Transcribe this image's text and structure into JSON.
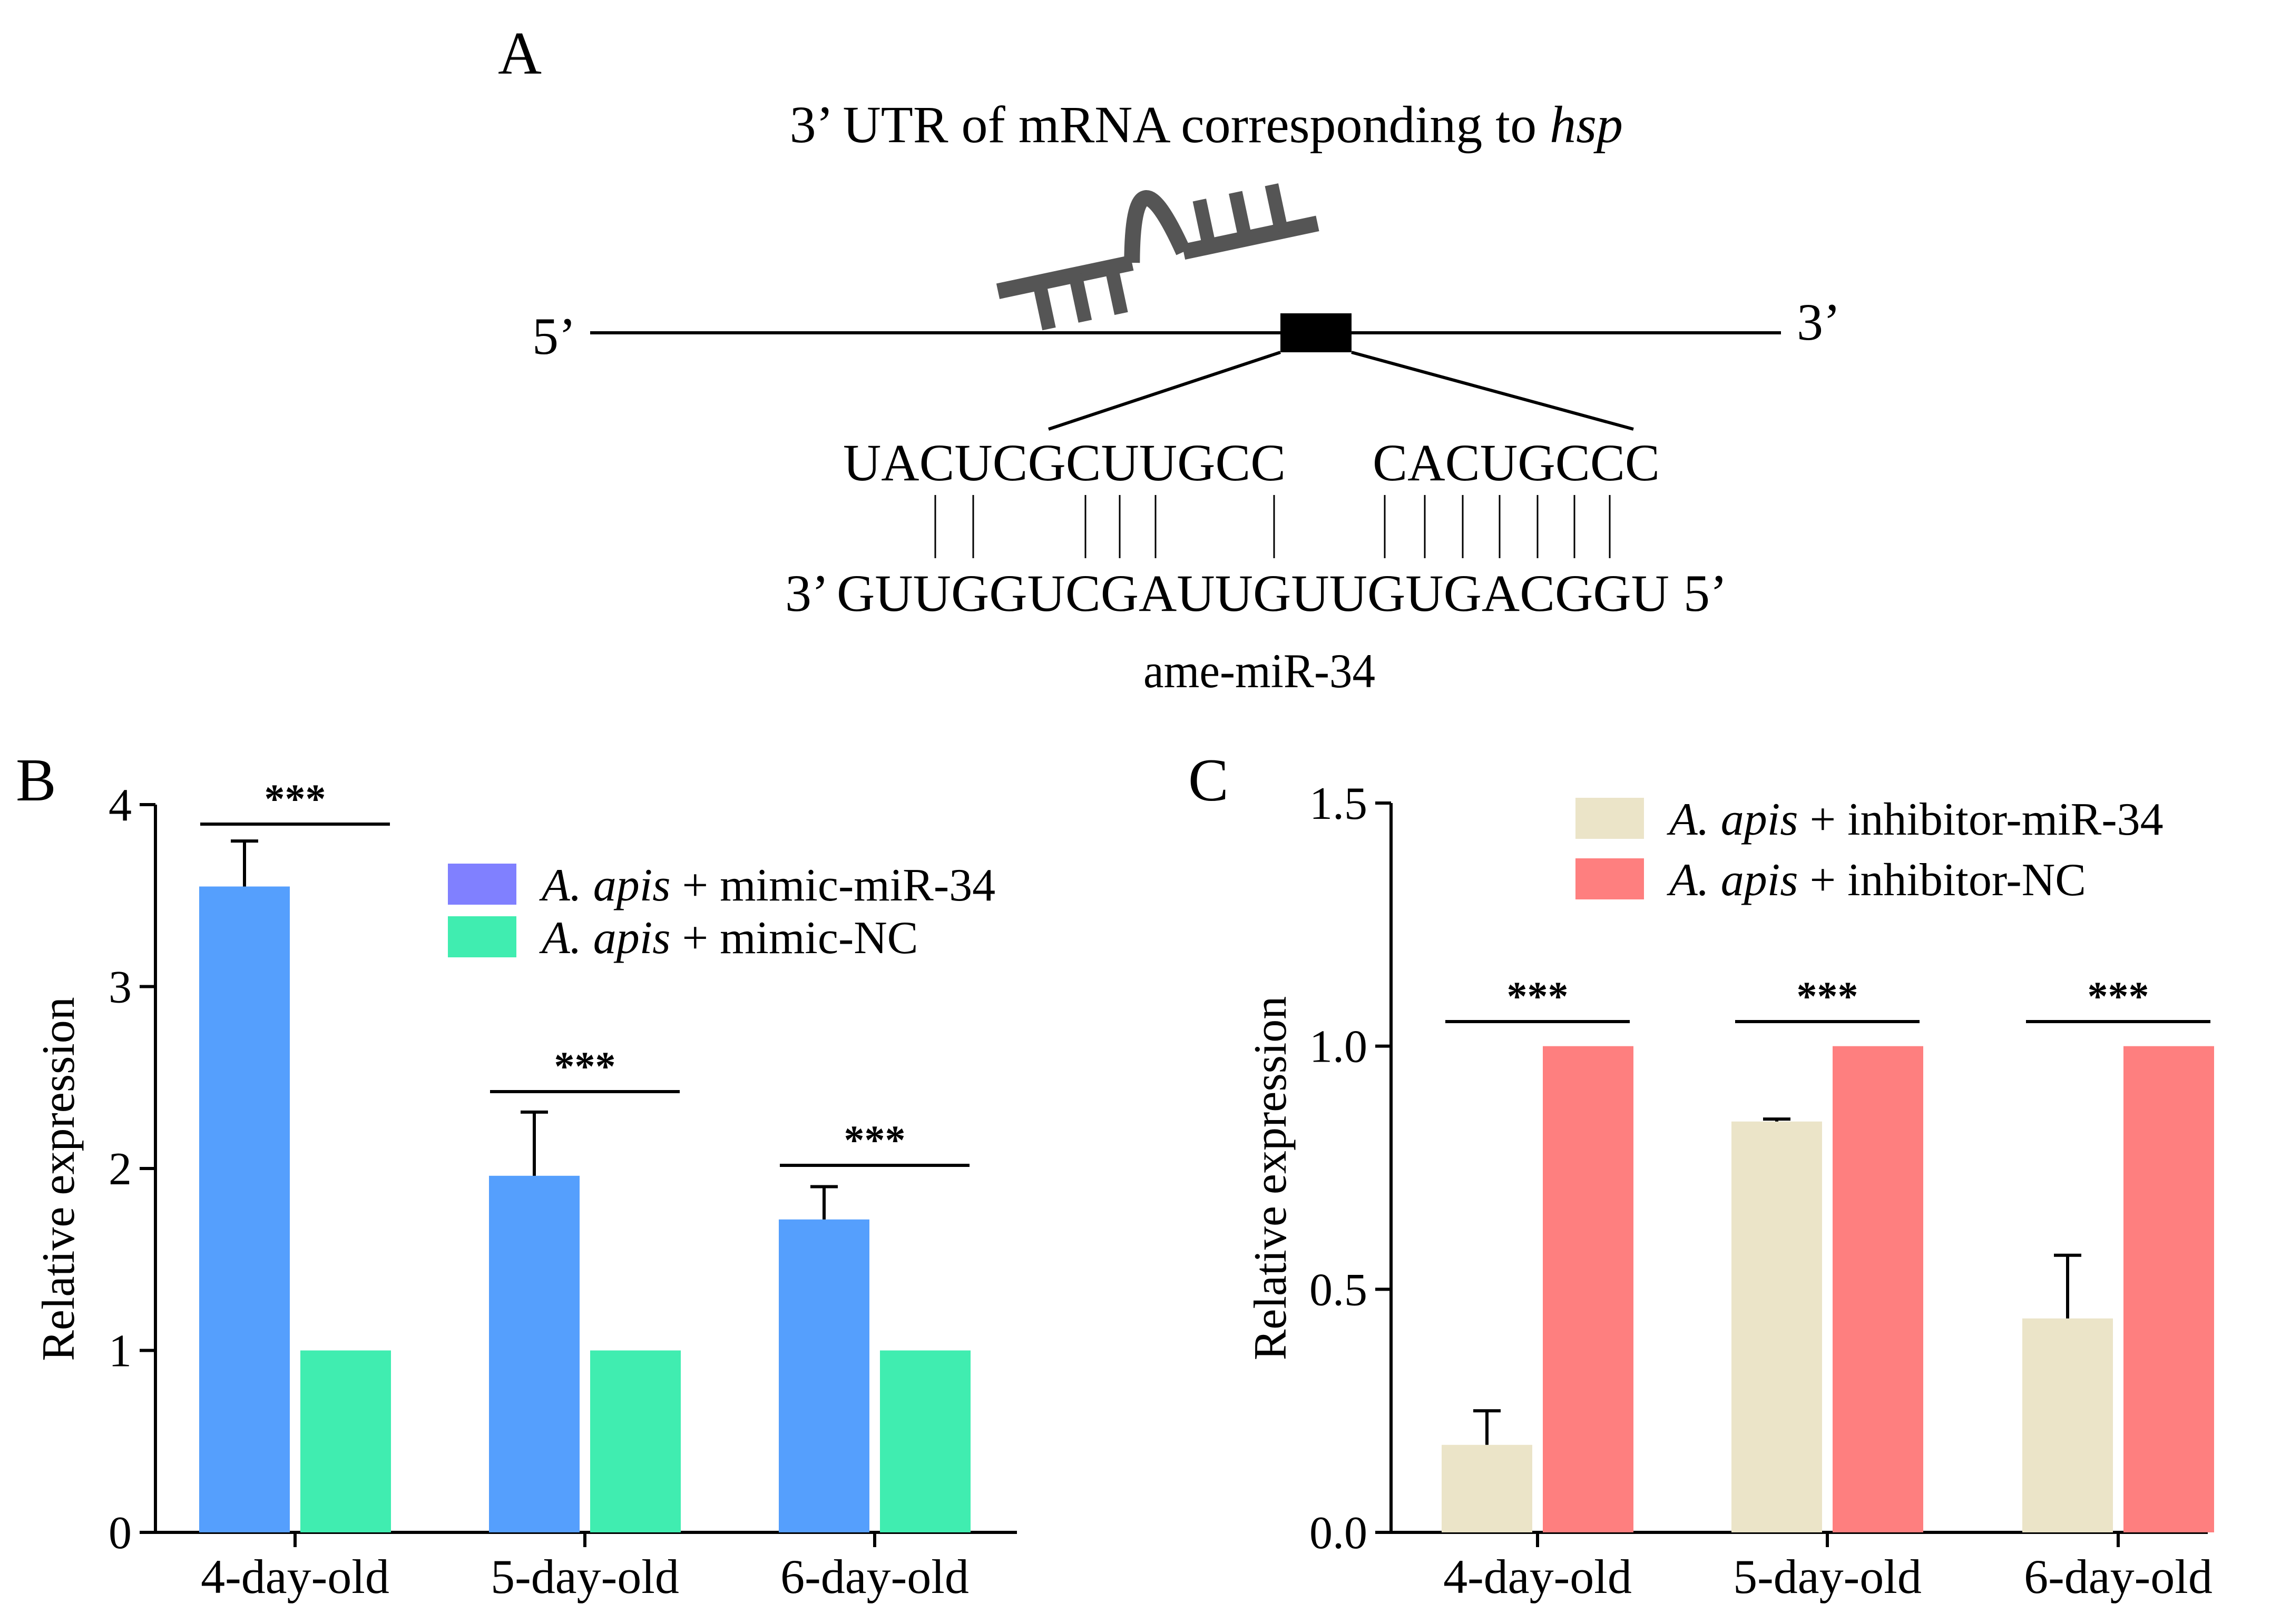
{
  "panel_a": {
    "letter": "A",
    "title_prefix": "3’ UTR of mRNA corresponding to ",
    "title_gene": "hsp",
    "end_left": "5’",
    "end_right": "3’",
    "target_seq_left": "UACUCGCUUGCC",
    "target_seq_right": "CACUGCCC",
    "mirna_prefix": "3’",
    "mirna_seq": "GUUGGUCGAUUGUUGUGACGGU",
    "mirna_suffix": "5’",
    "mirna_name": "ame-miR-34",
    "colors": {
      "hairpin": "#555555"
    }
  },
  "chart_data": [
    {
      "panel": "B",
      "type": "bar",
      "ylabel": "Relative expression",
      "ylim": [
        0,
        4
      ],
      "yticks": [
        "0",
        "1",
        "2",
        "3",
        "4"
      ],
      "categories": [
        "4-day-old",
        "5-day-old",
        "6-day-old"
      ],
      "series": [
        {
          "name_italic": "A. apis",
          "name_rest": "+ mimic-miR-34",
          "legend_color": "#8080ff",
          "color": "#559ffd",
          "values": [
            3.55,
            1.96,
            1.72
          ],
          "errors": [
            0.25,
            0.35,
            0.18
          ]
        },
        {
          "name_italic": "A. apis",
          "name_rest": "+ mimic-NC",
          "legend_color": "#40edb0",
          "color": "#40edb0",
          "values": [
            1.0,
            1.0,
            1.0
          ],
          "errors": [
            0,
            0,
            0
          ]
        }
      ],
      "significance": [
        "***",
        "***",
        "***"
      ],
      "legend_position": "top-right"
    },
    {
      "panel": "C",
      "type": "bar",
      "ylabel": "Relative expression",
      "ylim": [
        0,
        1.5
      ],
      "yticks": [
        "0.0",
        "0.5",
        "1.0",
        "1.5"
      ],
      "categories": [
        "4-day-old",
        "5-day-old",
        "6-day-old"
      ],
      "series": [
        {
          "name_italic": "A. apis",
          "name_rest": "+ inhibitor-miR-34",
          "legend_color": "#ebe4c8",
          "color": "#ebe4c8",
          "values": [
            0.18,
            0.845,
            0.44
          ],
          "errors": [
            0.07,
            0.005,
            0.13
          ]
        },
        {
          "name_italic": "A. apis",
          "name_rest": "+ inhibitor-NC",
          "legend_color": "#fe7f7f",
          "color": "#fe7f7f",
          "values": [
            1.0,
            1.0,
            1.0
          ],
          "errors": [
            0,
            0,
            0
          ]
        }
      ],
      "significance": [
        "***",
        "***",
        "***"
      ],
      "legend_position": "top-right"
    }
  ]
}
